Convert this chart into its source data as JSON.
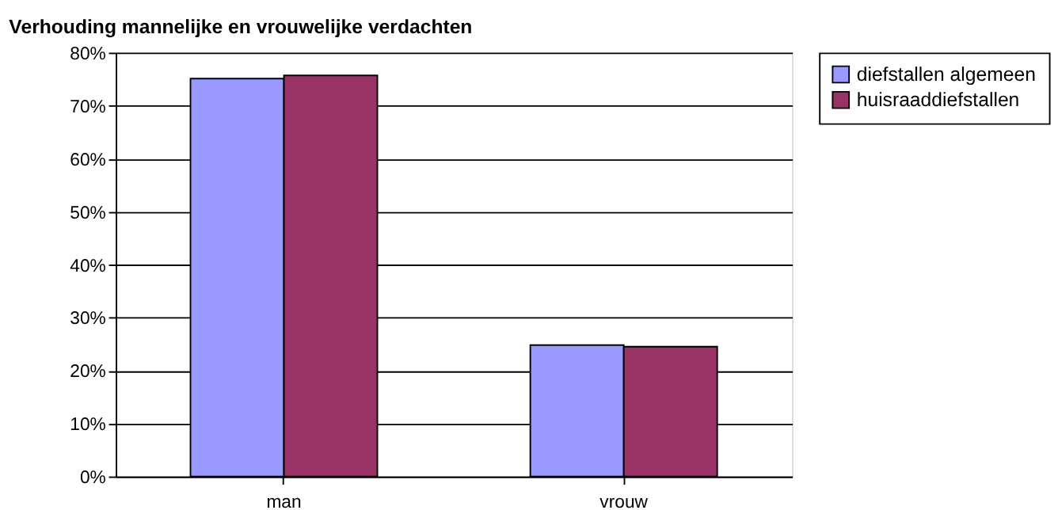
{
  "chart_data": {
    "type": "bar",
    "title": "Verhouding mannelijke en vrouwelijke verdachten",
    "categories": [
      "man",
      "vrouw"
    ],
    "series": [
      {
        "name": "diefstallen algemeen",
        "color": "#9999ff",
        "values": [
          75.1,
          24.8
        ]
      },
      {
        "name": "huisraaddiefstallen",
        "color": "#993366",
        "values": [
          75.7,
          24.5
        ]
      }
    ],
    "ylim": [
      0,
      80
    ],
    "yticks": [
      {
        "value": 0,
        "label": "0%"
      },
      {
        "value": 10,
        "label": "10%"
      },
      {
        "value": 20,
        "label": "20%"
      },
      {
        "value": 30,
        "label": "30%"
      },
      {
        "value": 40,
        "label": "40%"
      },
      {
        "value": 50,
        "label": "50%"
      },
      {
        "value": 60,
        "label": "60%"
      },
      {
        "value": 70,
        "label": "70%"
      },
      {
        "value": 80,
        "label": "80%"
      }
    ],
    "grid": "y",
    "legend": "right"
  }
}
